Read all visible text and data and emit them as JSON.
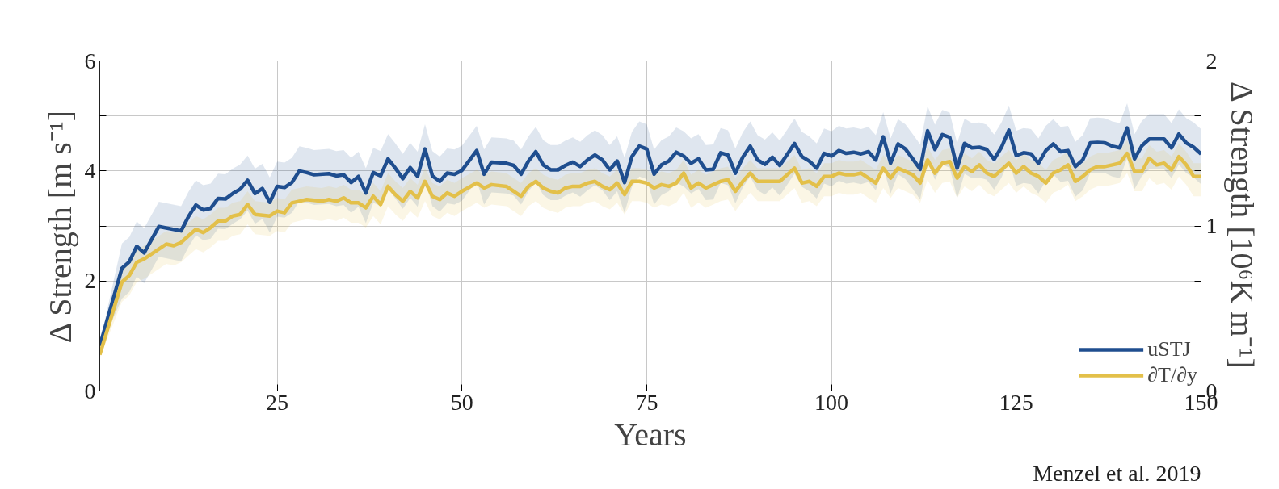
{
  "chart_data": {
    "type": "line",
    "xlabel": "Years",
    "ylabel": "Δ Strength [m s⁻¹]",
    "y2label": "Δ Strength [10⁶K m⁻¹]",
    "annotations": [
      "Menzel et al. 2019"
    ],
    "xlim": [
      1,
      150
    ],
    "xticks": [
      25,
      50,
      75,
      100,
      125,
      150
    ],
    "ylim": [
      0,
      6
    ],
    "yticks": [
      0,
      {
        "value": 1,
        "label": null
      },
      2,
      {
        "value": 3,
        "label": null
      },
      4,
      {
        "value": 5,
        "label": null
      },
      6
    ],
    "y2lim": [
      0,
      2
    ],
    "y2ticks": [
      0,
      {
        "value": 0.333,
        "label": null
      },
      {
        "value": 0.667,
        "label": null
      },
      1,
      {
        "value": 1.333,
        "label": null
      },
      {
        "value": 1.667,
        "label": null
      },
      2
    ],
    "grid": true,
    "legend": "bottom right",
    "line_style": "solid",
    "series": [
      {
        "name": "uSTJ",
        "color": "#1f4e8f",
        "x": [
          1,
          4,
          5,
          6,
          7,
          9,
          12,
          13,
          14,
          15,
          16,
          17,
          18,
          19,
          20,
          21,
          22,
          23,
          24,
          25,
          26,
          27,
          28,
          29,
          30,
          32,
          33,
          34,
          35,
          36,
          37,
          38,
          39,
          40,
          41,
          42,
          43,
          44,
          45,
          46,
          47,
          48,
          49,
          50,
          52,
          53,
          54,
          56,
          57,
          58,
          59,
          60,
          61,
          62,
          63,
          64,
          65,
          66,
          67,
          68,
          69,
          70,
          71,
          72,
          73,
          74,
          75,
          76,
          77,
          78,
          79,
          80,
          81,
          82,
          83,
          84,
          85,
          86,
          87,
          88,
          89,
          90,
          91,
          92,
          93,
          94,
          95,
          96,
          97,
          98,
          99,
          100,
          101,
          102,
          103,
          104,
          105,
          106,
          107,
          108,
          109,
          110,
          111,
          112,
          113,
          114,
          115,
          116,
          117,
          118,
          119,
          120,
          121,
          122,
          123,
          124,
          125,
          126,
          127,
          128,
          129,
          130,
          131,
          132,
          133,
          134,
          135,
          136,
          137,
          138,
          139,
          140,
          141,
          142,
          143,
          144,
          145,
          146,
          147,
          148,
          149,
          150
        ],
        "values": [
          0.82,
          2.23,
          2.35,
          2.63,
          2.51,
          2.99,
          2.91,
          3.17,
          3.38,
          3.29,
          3.32,
          3.5,
          3.49,
          3.59,
          3.67,
          3.83,
          3.59,
          3.68,
          3.43,
          3.72,
          3.7,
          3.79,
          4.0,
          3.97,
          3.93,
          3.95,
          3.91,
          3.93,
          3.79,
          3.9,
          3.6,
          3.97,
          3.91,
          4.22,
          4.05,
          3.86,
          4.06,
          3.9,
          4.4,
          3.91,
          3.81,
          3.96,
          3.94,
          4.01,
          4.37,
          3.94,
          4.16,
          4.14,
          4.1,
          3.94,
          4.18,
          4.35,
          4.11,
          4.02,
          4.02,
          4.1,
          4.16,
          4.08,
          4.2,
          4.29,
          4.2,
          4.02,
          4.18,
          3.79,
          4.26,
          4.45,
          4.4,
          3.94,
          4.11,
          4.18,
          4.34,
          4.27,
          4.14,
          4.22,
          4.02,
          4.03,
          4.33,
          4.29,
          3.96,
          4.25,
          4.45,
          4.2,
          4.12,
          4.25,
          4.1,
          4.3,
          4.5,
          4.26,
          4.18,
          4.05,
          4.32,
          4.27,
          4.37,
          4.32,
          4.34,
          4.31,
          4.35,
          4.2,
          4.62,
          4.14,
          4.49,
          4.4,
          4.22,
          4.03,
          4.73,
          4.39,
          4.66,
          4.61,
          4.05,
          4.5,
          4.42,
          4.43,
          4.39,
          4.21,
          4.43,
          4.74,
          4.28,
          4.33,
          4.31,
          4.14,
          4.37,
          4.49,
          4.35,
          4.37,
          4.08,
          4.2,
          4.51,
          4.52,
          4.51,
          4.45,
          4.42,
          4.78,
          4.22,
          4.46,
          4.58,
          4.58,
          4.58,
          4.42,
          4.67,
          4.51,
          4.43,
          4.31
        ],
        "upper": [
          0.87,
          2.68,
          2.8,
          3.08,
          2.96,
          3.44,
          3.36,
          3.62,
          3.83,
          3.74,
          3.77,
          3.95,
          3.94,
          4.04,
          4.12,
          4.28,
          4.04,
          4.13,
          3.88,
          4.17,
          4.15,
          4.24,
          4.45,
          4.42,
          4.38,
          4.4,
          4.36,
          4.38,
          4.24,
          4.35,
          4.05,
          4.42,
          4.36,
          4.67,
          4.5,
          4.31,
          4.51,
          4.35,
          4.85,
          4.36,
          4.26,
          4.41,
          4.39,
          4.46,
          4.82,
          4.39,
          4.61,
          4.59,
          4.55,
          4.39,
          4.63,
          4.8,
          4.56,
          4.47,
          4.47,
          4.55,
          4.61,
          4.53,
          4.65,
          4.74,
          4.65,
          4.47,
          4.63,
          4.24,
          4.71,
          4.9,
          4.85,
          4.39,
          4.56,
          4.63,
          4.79,
          4.72,
          4.59,
          4.67,
          4.47,
          4.48,
          4.78,
          4.74,
          4.41,
          4.7,
          4.9,
          4.65,
          4.57,
          4.7,
          4.55,
          4.75,
          4.95,
          4.71,
          4.63,
          4.5,
          4.77,
          4.72,
          4.82,
          4.77,
          4.79,
          4.76,
          4.8,
          4.65,
          5.07,
          4.59,
          4.94,
          4.85,
          4.67,
          4.48,
          5.18,
          4.84,
          5.11,
          5.06,
          4.5,
          4.95,
          4.87,
          4.88,
          4.84,
          4.66,
          4.88,
          5.19,
          4.73,
          4.78,
          4.76,
          4.59,
          4.82,
          4.94,
          4.8,
          4.82,
          4.53,
          4.65,
          4.96,
          4.97,
          4.96,
          4.9,
          4.87,
          5.23,
          4.67,
          4.91,
          5.03,
          5.03,
          5.03,
          4.87,
          5.12,
          4.96,
          4.88,
          4.76
        ],
        "lower": [
          0.77,
          1.68,
          1.8,
          2.08,
          1.96,
          2.44,
          2.36,
          2.62,
          2.83,
          2.74,
          2.77,
          2.95,
          2.94,
          3.04,
          3.12,
          3.28,
          3.04,
          3.13,
          2.88,
          3.17,
          3.15,
          3.24,
          3.45,
          3.42,
          3.38,
          3.4,
          3.36,
          3.38,
          3.24,
          3.35,
          3.05,
          3.42,
          3.36,
          3.67,
          3.5,
          3.31,
          3.51,
          3.35,
          3.85,
          3.36,
          3.26,
          3.41,
          3.39,
          3.46,
          3.82,
          3.39,
          3.61,
          3.59,
          3.55,
          3.39,
          3.63,
          3.8,
          3.56,
          3.47,
          3.47,
          3.55,
          3.61,
          3.53,
          3.65,
          3.74,
          3.65,
          3.47,
          3.63,
          3.24,
          3.71,
          3.9,
          3.85,
          3.39,
          3.56,
          3.63,
          3.79,
          3.72,
          3.59,
          3.67,
          3.47,
          3.48,
          3.78,
          3.74,
          3.41,
          3.7,
          3.9,
          3.65,
          3.57,
          3.7,
          3.55,
          3.75,
          3.95,
          3.71,
          3.63,
          3.5,
          3.77,
          3.72,
          3.82,
          3.77,
          3.79,
          3.76,
          3.8,
          3.65,
          4.07,
          3.59,
          3.94,
          3.85,
          3.67,
          3.48,
          4.18,
          3.84,
          4.11,
          4.06,
          3.5,
          3.95,
          3.87,
          3.88,
          3.84,
          3.66,
          3.88,
          4.19,
          3.73,
          3.78,
          3.76,
          3.59,
          3.82,
          3.94,
          3.8,
          3.82,
          3.53,
          3.65,
          3.96,
          3.97,
          3.96,
          3.9,
          3.87,
          4.23,
          3.67,
          3.91,
          4.03,
          4.03,
          4.03,
          3.87,
          4.12,
          3.96,
          3.88,
          3.76
        ]
      },
      {
        "name": "∂T/∂y",
        "color": "#e3c04a",
        "axis": "y2",
        "x": [
          1,
          4,
          5,
          6,
          7,
          9,
          10,
          11,
          12,
          13,
          14,
          15,
          16,
          17,
          18,
          19,
          20,
          21,
          22,
          24,
          25,
          26,
          27,
          28,
          29,
          31,
          32,
          33,
          34,
          35,
          36,
          37,
          38,
          39,
          40,
          41,
          42,
          43,
          44,
          45,
          46,
          47,
          48,
          49,
          50,
          52,
          53,
          54,
          56,
          58,
          59,
          60,
          61,
          62,
          63,
          64,
          65,
          66,
          67,
          68,
          69,
          70,
          71,
          72,
          73,
          74,
          75,
          76,
          77,
          78,
          79,
          80,
          81,
          82,
          83,
          84,
          85,
          86,
          87,
          88,
          89,
          90,
          91,
          93,
          94,
          95,
          96,
          97,
          98,
          99,
          100,
          101,
          102,
          103,
          104,
          105,
          106,
          107,
          108,
          109,
          110,
          111,
          112,
          113,
          114,
          115,
          116,
          117,
          118,
          119,
          120,
          121,
          122,
          123,
          124,
          125,
          126,
          127,
          128,
          129,
          130,
          131,
          132,
          133,
          134,
          135,
          136,
          137,
          138,
          139,
          140,
          141,
          142,
          143,
          144,
          145,
          146,
          147,
          148,
          149,
          150
        ],
        "values": [
          0.22,
          0.66,
          0.7,
          0.78,
          0.8,
          0.86,
          0.89,
          0.88,
          0.9,
          0.94,
          0.98,
          0.96,
          0.99,
          1.03,
          1.03,
          1.06,
          1.07,
          1.13,
          1.07,
          1.06,
          1.09,
          1.08,
          1.14,
          1.15,
          1.16,
          1.15,
          1.16,
          1.15,
          1.17,
          1.14,
          1.14,
          1.11,
          1.18,
          1.13,
          1.24,
          1.19,
          1.15,
          1.21,
          1.17,
          1.27,
          1.18,
          1.16,
          1.2,
          1.18,
          1.21,
          1.26,
          1.23,
          1.25,
          1.24,
          1.18,
          1.24,
          1.27,
          1.23,
          1.21,
          1.2,
          1.23,
          1.24,
          1.24,
          1.26,
          1.27,
          1.24,
          1.22,
          1.26,
          1.19,
          1.27,
          1.27,
          1.26,
          1.23,
          1.25,
          1.24,
          1.26,
          1.32,
          1.23,
          1.26,
          1.23,
          1.25,
          1.27,
          1.28,
          1.21,
          1.27,
          1.32,
          1.27,
          1.27,
          1.27,
          1.31,
          1.35,
          1.26,
          1.27,
          1.24,
          1.3,
          1.3,
          1.32,
          1.31,
          1.31,
          1.32,
          1.29,
          1.26,
          1.35,
          1.29,
          1.35,
          1.33,
          1.31,
          1.26,
          1.4,
          1.32,
          1.38,
          1.39,
          1.29,
          1.36,
          1.33,
          1.37,
          1.32,
          1.3,
          1.34,
          1.38,
          1.32,
          1.36,
          1.32,
          1.3,
          1.26,
          1.32,
          1.34,
          1.37,
          1.27,
          1.3,
          1.34,
          1.36,
          1.36,
          1.37,
          1.38,
          1.44,
          1.33,
          1.33,
          1.41,
          1.37,
          1.38,
          1.34,
          1.42,
          1.37,
          1.3,
          1.3
        ],
        "upper": [
          0.24,
          0.74,
          0.78,
          0.86,
          0.88,
          0.94,
          0.97,
          0.96,
          0.98,
          1.02,
          1.06,
          1.04,
          1.07,
          1.11,
          1.11,
          1.14,
          1.15,
          1.21,
          1.15,
          1.14,
          1.17,
          1.16,
          1.22,
          1.23,
          1.24,
          1.23,
          1.24,
          1.23,
          1.25,
          1.22,
          1.22,
          1.19,
          1.26,
          1.21,
          1.32,
          1.27,
          1.23,
          1.29,
          1.25,
          1.35,
          1.26,
          1.24,
          1.28,
          1.26,
          1.29,
          1.34,
          1.31,
          1.33,
          1.32,
          1.26,
          1.32,
          1.35,
          1.31,
          1.29,
          1.28,
          1.31,
          1.32,
          1.32,
          1.34,
          1.35,
          1.32,
          1.3,
          1.34,
          1.27,
          1.35,
          1.35,
          1.34,
          1.31,
          1.33,
          1.32,
          1.34,
          1.4,
          1.31,
          1.34,
          1.31,
          1.33,
          1.35,
          1.36,
          1.29,
          1.35,
          1.4,
          1.35,
          1.35,
          1.35,
          1.39,
          1.43,
          1.34,
          1.35,
          1.32,
          1.38,
          1.38,
          1.4,
          1.39,
          1.39,
          1.4,
          1.37,
          1.34,
          1.43,
          1.37,
          1.43,
          1.41,
          1.39,
          1.34,
          1.48,
          1.4,
          1.46,
          1.47,
          1.37,
          1.44,
          1.41,
          1.45,
          1.4,
          1.38,
          1.42,
          1.46,
          1.4,
          1.44,
          1.4,
          1.38,
          1.34,
          1.4,
          1.42,
          1.45,
          1.35,
          1.38,
          1.42,
          1.44,
          1.44,
          1.45,
          1.46,
          1.52,
          1.41,
          1.41,
          1.49,
          1.45,
          1.46,
          1.42,
          1.5,
          1.45,
          1.38,
          1.38
        ],
        "lower": [
          0.2,
          0.54,
          0.58,
          0.66,
          0.68,
          0.74,
          0.77,
          0.76,
          0.78,
          0.82,
          0.86,
          0.84,
          0.87,
          0.91,
          0.91,
          0.94,
          0.95,
          1.01,
          0.95,
          0.94,
          0.97,
          0.96,
          1.02,
          1.03,
          1.04,
          1.03,
          1.04,
          1.03,
          1.05,
          1.02,
          1.02,
          0.99,
          1.06,
          1.01,
          1.12,
          1.07,
          1.03,
          1.09,
          1.05,
          1.15,
          1.06,
          1.04,
          1.08,
          1.06,
          1.09,
          1.14,
          1.11,
          1.13,
          1.12,
          1.06,
          1.12,
          1.15,
          1.11,
          1.09,
          1.08,
          1.11,
          1.12,
          1.12,
          1.14,
          1.15,
          1.12,
          1.1,
          1.14,
          1.07,
          1.15,
          1.15,
          1.14,
          1.11,
          1.13,
          1.12,
          1.14,
          1.2,
          1.11,
          1.14,
          1.11,
          1.13,
          1.15,
          1.16,
          1.09,
          1.15,
          1.2,
          1.15,
          1.15,
          1.15,
          1.19,
          1.23,
          1.14,
          1.15,
          1.12,
          1.18,
          1.18,
          1.2,
          1.19,
          1.19,
          1.2,
          1.17,
          1.14,
          1.23,
          1.17,
          1.23,
          1.21,
          1.19,
          1.14,
          1.28,
          1.2,
          1.26,
          1.27,
          1.17,
          1.24,
          1.21,
          1.25,
          1.2,
          1.18,
          1.22,
          1.26,
          1.2,
          1.24,
          1.2,
          1.18,
          1.14,
          1.2,
          1.22,
          1.25,
          1.15,
          1.18,
          1.22,
          1.24,
          1.24,
          1.25,
          1.26,
          1.32,
          1.21,
          1.21,
          1.29,
          1.25,
          1.26,
          1.22,
          1.3,
          1.25,
          1.18,
          1.18
        ]
      }
    ]
  }
}
